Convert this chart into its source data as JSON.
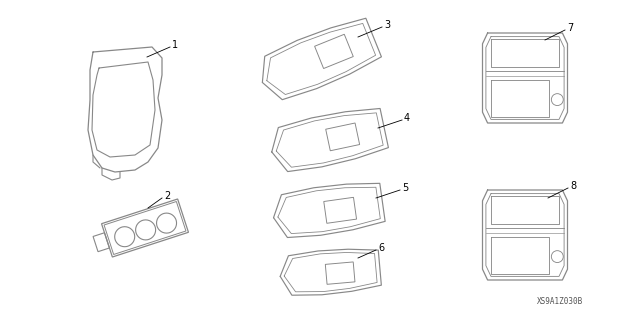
{
  "background_color": "#ffffff",
  "line_color": "#888888",
  "watermark": "XS9A1Z030B",
  "figsize": [
    6.4,
    3.19
  ],
  "dpi": 100
}
